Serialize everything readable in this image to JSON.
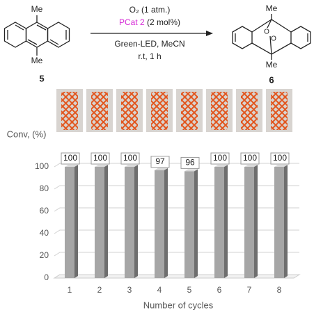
{
  "scheme": {
    "reactant_top_group": "Me",
    "reactant_bottom_group": "Me",
    "reactant_label": "5",
    "oxidant": "O₂ (1 atm.)",
    "catalyst": "PCat 2",
    "catalyst_loading": "(2 mol%)",
    "conditions_1": "Green-LED, MeCN",
    "conditions_2": "r.t, 1 h",
    "product_top_group": "Me",
    "product_bottom_group": "Me",
    "product_oxygen_1": "O",
    "product_oxygen_2": "O",
    "product_label": "6"
  },
  "chart_data": {
    "type": "bar",
    "ylabel": "Conv, (%)",
    "xlabel": "Number of cycles",
    "categories": [
      "1",
      "2",
      "3",
      "4",
      "5",
      "6",
      "7",
      "8"
    ],
    "values": [
      100,
      100,
      100,
      97,
      96,
      100,
      100,
      100
    ],
    "color": "#a6a6a6",
    "ylim": [
      0,
      100
    ],
    "yticks": [
      0,
      20,
      40,
      60,
      80,
      100
    ],
    "grid": true
  }
}
